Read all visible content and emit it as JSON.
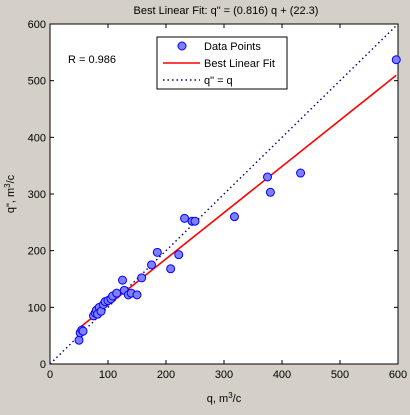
{
  "chart_data": {
    "type": "scatter",
    "title": "Best Linear Fit:  q\" = (0.816) q + (22.3)",
    "xlabel": {
      "main": "q, m",
      "sup": "3",
      "tail": "/c"
    },
    "ylabel": {
      "main": "q\", m",
      "sup": "3",
      "tail": "/c"
    },
    "xlim": [
      0,
      600
    ],
    "ylim": [
      0,
      600
    ],
    "xticks": [
      "0",
      "100",
      "200",
      "300",
      "400",
      "500",
      "600"
    ],
    "yticks": [
      "0",
      "100",
      "200",
      "300",
      "400",
      "500",
      "600"
    ],
    "grid": false,
    "annotation": "R = 0.986",
    "legend": {
      "position": "top-center",
      "entries": [
        "Data Points",
        "Best Linear Fit",
        "q\" = q"
      ]
    },
    "series": [
      {
        "name": "Data Points",
        "kind": "scatter",
        "color": "#7f7fff",
        "edge_color": "#0000ff",
        "points": [
          [
            50,
            42
          ],
          [
            52,
            55
          ],
          [
            55,
            60
          ],
          [
            57,
            58
          ],
          [
            75,
            85
          ],
          [
            78,
            90
          ],
          [
            80,
            95
          ],
          [
            82,
            88
          ],
          [
            85,
            100
          ],
          [
            88,
            93
          ],
          [
            92,
            105
          ],
          [
            95,
            110
          ],
          [
            100,
            112
          ],
          [
            105,
            115
          ],
          [
            108,
            120
          ],
          [
            115,
            125
          ],
          [
            125,
            148
          ],
          [
            128,
            130
          ],
          [
            135,
            122
          ],
          [
            140,
            125
          ],
          [
            150,
            122
          ],
          [
            158,
            152
          ],
          [
            175,
            175
          ],
          [
            185,
            197
          ],
          [
            208,
            168
          ],
          [
            222,
            193
          ],
          [
            232,
            257
          ],
          [
            245,
            252
          ],
          [
            250,
            252
          ],
          [
            318,
            260
          ],
          [
            375,
            330
          ],
          [
            380,
            303
          ],
          [
            432,
            337
          ],
          [
            597,
            537
          ]
        ]
      },
      {
        "name": "Best Linear Fit",
        "kind": "line",
        "color": "#ff0000",
        "slope": 0.816,
        "intercept": 22.3,
        "x_range": [
          48,
          597
        ]
      },
      {
        "name": "q\" = q",
        "kind": "line",
        "style": "dotted",
        "color": "#000080",
        "slope": 1,
        "intercept": 0,
        "x_range": [
          0,
          600
        ]
      }
    ]
  }
}
